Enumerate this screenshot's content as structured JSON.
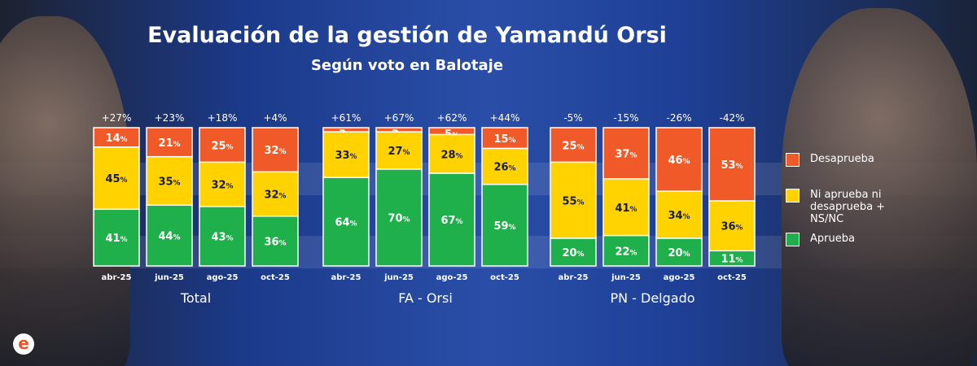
{
  "title": "Evaluación de la gestión de Yamandú Orsi",
  "subtitle": "Según voto en Balotaje",
  "logo_text": "e",
  "chart_data": {
    "type": "stacked-bar",
    "title": "Evaluación de la gestión de Yamandú Orsi",
    "subtitle": "Según voto en Balotaje",
    "legend_position": "right",
    "series_order": [
      "Aprueba",
      "Ni aprueba ni desaprueba + NS/NC",
      "Desaprueba"
    ],
    "colors": {
      "Desaprueba": "#f05a28",
      "Ni aprueba ni desaprueba + NS/NC": "#ffd200",
      "Aprueba": "#1fb04b"
    },
    "legend": [
      {
        "label": "Desaprueba",
        "color": "#f05a28"
      },
      {
        "label": "Ni aprueba ni desaprueba + NS/NC",
        "color": "#ffd200"
      },
      {
        "label": "Aprueba",
        "color": "#1fb04b"
      }
    ],
    "groups": [
      {
        "name": "Total",
        "categories": [
          "abr-25",
          "jun-25",
          "ago-25",
          "oct-25"
        ],
        "aprueba": [
          41,
          44,
          43,
          36
        ],
        "ni": [
          45,
          35,
          32,
          32
        ],
        "desaprueba": [
          14,
          21,
          25,
          32
        ],
        "net": [
          "+27%",
          "+23%",
          "+18%",
          "+4%"
        ]
      },
      {
        "name": "FA - Orsi",
        "categories": [
          "abr-25",
          "jun-25",
          "ago-25",
          "oct-25"
        ],
        "aprueba": [
          64,
          70,
          67,
          59
        ],
        "ni": [
          33,
          27,
          28,
          26
        ],
        "desaprueba": [
          3,
          3,
          5,
          15
        ],
        "net": [
          "+61%",
          "+67%",
          "+62%",
          "+44%"
        ]
      },
      {
        "name": "PN - Delgado",
        "categories": [
          "abr-25",
          "jun-25",
          "ago-25",
          "oct-25"
        ],
        "aprueba": [
          20,
          22,
          20,
          11
        ],
        "ni": [
          55,
          41,
          34,
          36
        ],
        "desaprueba": [
          25,
          37,
          46,
          53
        ],
        "net": [
          "-5%",
          "-15%",
          "-26%",
          "-42%"
        ]
      }
    ]
  }
}
